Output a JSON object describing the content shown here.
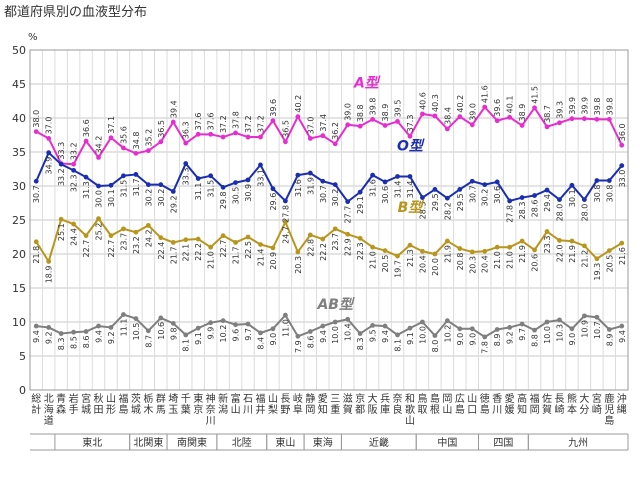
{
  "chart_data": {
    "type": "line",
    "title": "都道府県別の血液型分布",
    "unit": "%",
    "ylim": [
      0,
      50
    ],
    "yticks": [
      0,
      5,
      10,
      15,
      20,
      25,
      30,
      35,
      40,
      45,
      50
    ],
    "grid": true,
    "categories": [
      "総計",
      "北海道",
      "青森",
      "岩手",
      "宮城",
      "秋田",
      "山形",
      "福島",
      "茨城",
      "栃木",
      "群馬",
      "埼玉",
      "千葉",
      "東京",
      "神奈川",
      "新潟",
      "富山",
      "石川",
      "福井",
      "山梨",
      "長野",
      "岐阜",
      "静岡",
      "愛知",
      "三重",
      "滋賀",
      "京都",
      "大阪",
      "兵庫",
      "奈良",
      "和歌山",
      "鳥取",
      "島根",
      "岡山",
      "広島",
      "山口",
      "徳島",
      "香川",
      "愛媛",
      "高知",
      "福岡",
      "佐賀",
      "長崎",
      "熊本",
      "大分",
      "宮崎",
      "鹿児島",
      "沖縄"
    ],
    "category_labels": [
      "総計",
      "北海道",
      "青森",
      "岩手",
      "宮城",
      "秋田",
      "山形",
      "福島",
      "茨城",
      "栃木",
      "群馬",
      "埼玉",
      "千葉",
      "東京",
      "神奈川",
      "新潟",
      "富山",
      "石川",
      "福井",
      "山梨",
      "長野",
      "岐阜",
      "静岡",
      "愛知",
      "三重",
      "滋賀",
      "京都",
      "大阪",
      "兵庫",
      "奈良",
      "和歌山",
      "鳥取",
      "島根",
      "岡山",
      "広島",
      "山口",
      "徳島",
      "香川",
      "愛媛",
      "高知",
      "福岡",
      "佐賀",
      "長崎",
      "熊本",
      "大分",
      "宮崎",
      "鹿児島",
      "沖縄"
    ],
    "regions": [
      {
        "name": "東北",
        "from": 2,
        "to": 7
      },
      {
        "name": "北関東",
        "from": 8,
        "to": 10
      },
      {
        "name": "南関東",
        "from": 11,
        "to": 14
      },
      {
        "name": "北陸",
        "from": 15,
        "to": 18
      },
      {
        "name": "東山",
        "from": 19,
        "to": 21
      },
      {
        "name": "東海",
        "from": 22,
        "to": 24
      },
      {
        "name": "近畿",
        "from": 25,
        "to": 30
      },
      {
        "name": "中国",
        "from": 31,
        "to": 35
      },
      {
        "name": "四国",
        "from": 36,
        "to": 39
      },
      {
        "name": "九州",
        "from": 40,
        "to": 47
      }
    ],
    "series": [
      {
        "name": "A型",
        "color": "#e62ecf",
        "values": [
          38.0,
          37.0,
          33.3,
          33.2,
          36.6,
          34.2,
          37.1,
          35.6,
          34.8,
          35.2,
          36.5,
          39.4,
          36.3,
          37.6,
          37.6,
          37.2,
          37.8,
          37.2,
          37.2,
          39.6,
          36.5,
          40.2,
          37.0,
          37.4,
          36.2,
          39.0,
          38.8,
          39.8,
          38.9,
          39.5,
          37.3,
          40.6,
          40.3,
          38.4,
          40.2,
          39.0,
          41.6,
          39.6,
          40.1,
          38.9,
          41.5,
          38.7,
          39.3,
          39.9,
          39.9,
          39.8,
          39.8,
          36.0
        ]
      },
      {
        "name": "O型",
        "color": "#1b2eb0",
        "values": [
          30.7,
          34.9,
          33.2,
          32.3,
          31.3,
          30.0,
          30.1,
          31.5,
          31.7,
          30.2,
          30.2,
          29.2,
          33.3,
          31.1,
          31.5,
          29.8,
          30.5,
          30.9,
          33.1,
          29.6,
          27.8,
          31.6,
          31.9,
          30.7,
          30.2,
          27.7,
          29.1,
          31.6,
          30.6,
          31.4,
          31.4,
          28.3,
          29.5,
          28.2,
          29.5,
          30.7,
          30.2,
          30.6,
          27.8,
          28.3,
          28.6,
          29.4,
          28.0,
          30.1,
          28.0,
          30.8,
          30.8,
          33.0
        ]
      },
      {
        "name": "B型",
        "color": "#b8961e",
        "values": [
          21.8,
          18.9,
          25.1,
          24.4,
          22.7,
          25.2,
          22.7,
          23.7,
          23.2,
          24.2,
          22.4,
          21.7,
          22.1,
          22.2,
          21.0,
          22.7,
          21.7,
          22.5,
          21.4,
          20.9,
          24.7,
          20.3,
          22.8,
          22.2,
          23.7,
          22.9,
          22.3,
          21.0,
          20.5,
          19.7,
          21.3,
          20.4,
          20.0,
          21.9,
          20.8,
          20.3,
          20.4,
          21.0,
          21.0,
          21.9,
          20.6,
          23.3,
          22.0,
          21.9,
          21.2,
          19.3,
          20.5,
          21.6
        ]
      },
      {
        "name": "AB型",
        "color": "#7f7f7f",
        "values": [
          9.4,
          9.2,
          8.3,
          8.5,
          8.6,
          9.4,
          9.2,
          11.1,
          10.5,
          8.7,
          10.6,
          9.8,
          8.1,
          9.1,
          9.9,
          10.2,
          9.6,
          9.7,
          8.4,
          9.0,
          11.0,
          7.9,
          8.6,
          9.4,
          10.0,
          10.4,
          8.3,
          9.5,
          9.4,
          8.1,
          9.1,
          10.0,
          8.0,
          10.2,
          9.0,
          9.0,
          7.8,
          8.9,
          9.2,
          9.7,
          8.8,
          10.0,
          10.3,
          9.0,
          10.9,
          10.7,
          8.9,
          9.4
        ]
      }
    ]
  }
}
